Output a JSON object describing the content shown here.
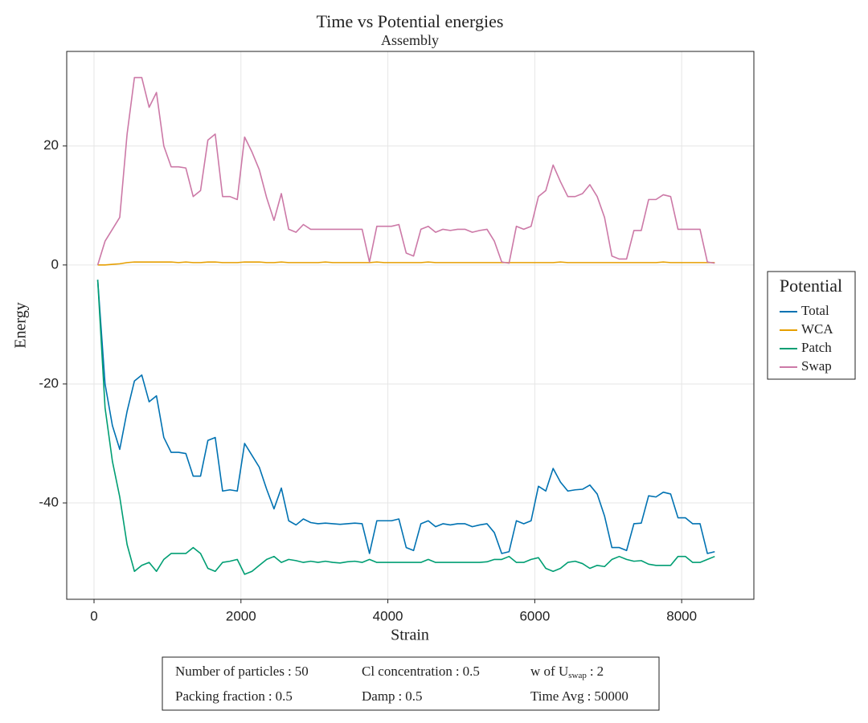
{
  "chart_data": {
    "type": "line",
    "title": "Time vs Potential energies",
    "subtitle": "Assembly",
    "x_label": "Strain",
    "y_label": "Energy",
    "x": [
      50,
      150,
      250,
      350,
      450,
      550,
      650,
      750,
      850,
      950,
      1050,
      1150,
      1250,
      1350,
      1450,
      1550,
      1650,
      1750,
      1850,
      1950,
      2050,
      2150,
      2250,
      2350,
      2450,
      2550,
      2650,
      2750,
      2850,
      2950,
      3050,
      3150,
      3250,
      3350,
      3450,
      3550,
      3650,
      3750,
      3850,
      3950,
      4050,
      4150,
      4250,
      4350,
      4450,
      4550,
      4650,
      4750,
      4850,
      4950,
      5050,
      5150,
      5250,
      5350,
      5450,
      5550,
      5650,
      5750,
      5850,
      5950,
      6050,
      6150,
      6250,
      6350,
      6450,
      6550,
      6650,
      6750,
      6850,
      6950,
      7050,
      7150,
      7250,
      7350,
      7450,
      7550,
      7650,
      7750,
      7850,
      7950,
      8050,
      8150,
      8250,
      8350,
      8450
    ],
    "series": [
      {
        "name": "Total",
        "color": "#0072b2",
        "values": [
          -2.5,
          -20,
          -27,
          -31,
          -24.6,
          -19.5,
          -18.5,
          -23,
          -22,
          -29,
          -31.5,
          -31.5,
          -31.7,
          -35.5,
          -35.5,
          -29.5,
          -29,
          -38,
          -37.8,
          -38,
          -30,
          -32,
          -34,
          -37.7,
          -41,
          -37.5,
          -43,
          -43.7,
          -42.7,
          -43.3,
          -43.5,
          -43.4,
          -43.5,
          -43.6,
          -43.5,
          -43.4,
          -43.5,
          -48.5,
          -43,
          -43,
          -43,
          -42.7,
          -47.5,
          -48,
          -43.5,
          -43,
          -44,
          -43.5,
          -43.7,
          -43.5,
          -43.5,
          -44,
          -43.7,
          -43.5,
          -45,
          -48.5,
          -48.2,
          -43,
          -43.5,
          -43,
          -37.2,
          -38,
          -34.2,
          -36.5,
          -38,
          -37.8,
          -37.7,
          -37,
          -38.5,
          -42.2,
          -47.5,
          -47.5,
          -48,
          -43.5,
          -43.4,
          -38.8,
          -39,
          -38.2,
          -38.5,
          -42.5,
          -42.5,
          -43.5,
          -43.5,
          -48.5,
          -48.2
        ]
      },
      {
        "name": "WCA",
        "color": "#e69f00",
        "values": [
          0,
          0,
          0.1,
          0.2,
          0.4,
          0.5,
          0.5,
          0.5,
          0.5,
          0.5,
          0.5,
          0.4,
          0.5,
          0.4,
          0.4,
          0.5,
          0.5,
          0.4,
          0.4,
          0.4,
          0.5,
          0.5,
          0.5,
          0.4,
          0.4,
          0.5,
          0.4,
          0.4,
          0.4,
          0.4,
          0.4,
          0.5,
          0.4,
          0.4,
          0.4,
          0.4,
          0.4,
          0.4,
          0.5,
          0.4,
          0.4,
          0.4,
          0.4,
          0.4,
          0.4,
          0.5,
          0.4,
          0.4,
          0.4,
          0.4,
          0.4,
          0.4,
          0.4,
          0.4,
          0.4,
          0.4,
          0.4,
          0.4,
          0.4,
          0.4,
          0.4,
          0.4,
          0.4,
          0.5,
          0.4,
          0.4,
          0.4,
          0.4,
          0.4,
          0.4,
          0.4,
          0.4,
          0.4,
          0.4,
          0.4,
          0.4,
          0.4,
          0.5,
          0.4,
          0.4,
          0.4,
          0.4,
          0.4,
          0.4,
          0.4
        ]
      },
      {
        "name": "Patch",
        "color": "#009e73",
        "values": [
          -2.5,
          -24,
          -33,
          -39,
          -47,
          -51.5,
          -50.5,
          -50,
          -51.5,
          -49.5,
          -48.5,
          -48.5,
          -48.5,
          -47.5,
          -48.5,
          -51,
          -51.5,
          -50,
          -49.8,
          -49.5,
          -52,
          -51.5,
          -50.5,
          -49.5,
          -49,
          -50,
          -49.5,
          -49.7,
          -50,
          -49.8,
          -50,
          -49.8,
          -50,
          -50.1,
          -49.9,
          -49.8,
          -50,
          -49.5,
          -50,
          -50,
          -50,
          -50,
          -50,
          -50,
          -50,
          -49.5,
          -50,
          -50,
          -50,
          -50,
          -50,
          -50,
          -50,
          -49.9,
          -49.5,
          -49.5,
          -49,
          -50,
          -50,
          -49.5,
          -49.2,
          -51,
          -51.5,
          -51,
          -50,
          -49.8,
          -50.2,
          -51,
          -50.5,
          -50.7,
          -49.5,
          -49,
          -49.5,
          -49.8,
          -49.7,
          -50.3,
          -50.5,
          -50.5,
          -50.5,
          -49,
          -49,
          -50,
          -50,
          -49.5,
          -49
        ]
      },
      {
        "name": "Swap",
        "color": "#cc79a7",
        "values": [
          0,
          4,
          6,
          8,
          22,
          31.5,
          31.5,
          26.5,
          29,
          20,
          16.5,
          16.5,
          16.3,
          11.5,
          12.5,
          21,
          22,
          11.5,
          11.5,
          11,
          21.5,
          19,
          16,
          11.3,
          7.5,
          12,
          6,
          5.5,
          6.8,
          6,
          6,
          6,
          6,
          6,
          6,
          6,
          6,
          0.5,
          6.5,
          6.5,
          6.5,
          6.8,
          2,
          1.5,
          6,
          6.5,
          5.5,
          6,
          5.8,
          6,
          6,
          5.5,
          5.8,
          6,
          4,
          0.5,
          0.3,
          6.5,
          6,
          6.5,
          11.5,
          12.5,
          16.8,
          14,
          11.5,
          11.5,
          12,
          13.5,
          11.5,
          8,
          1.5,
          1,
          1,
          5.8,
          5.8,
          11,
          11,
          11.8,
          11.5,
          6,
          6,
          6,
          6,
          0.5,
          0.3
        ]
      }
    ],
    "xlim": [
      -372,
      8983
    ],
    "ylim": [
      -56.2,
      35.9
    ],
    "xticks": [
      0,
      2000,
      4000,
      6000,
      8000
    ],
    "yticks": [
      20,
      0,
      -20,
      -40
    ],
    "grid": true,
    "legend_title": "Potential",
    "legend_position": "right",
    "parameter_separator": ":",
    "parameters": [
      {
        "name": "Number of particles",
        "value": 50
      },
      {
        "name": "Cl concentration",
        "value": 0.5
      },
      {
        "name": "w of U",
        "subscript": "swap",
        "value": 2
      },
      {
        "name": "Packing fraction",
        "value": 0.5
      },
      {
        "name": "Damp",
        "value": 0.5
      },
      {
        "name": "Time Avg",
        "value": 50000
      }
    ]
  }
}
